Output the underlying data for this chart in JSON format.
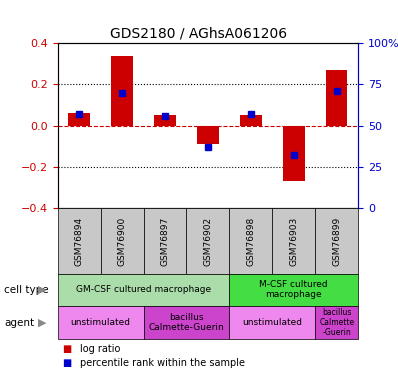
{
  "title": "GDS2180 / AGhsA061206",
  "samples": [
    "GSM76894",
    "GSM76900",
    "GSM76897",
    "GSM76902",
    "GSM76898",
    "GSM76903",
    "GSM76899"
  ],
  "log_ratio": [
    0.06,
    0.34,
    0.05,
    -0.09,
    0.05,
    -0.27,
    0.27
  ],
  "percentile_rank": [
    57,
    70,
    56,
    37,
    57,
    32,
    71
  ],
  "ylim_left": [
    -0.4,
    0.4
  ],
  "ylim_right": [
    0,
    100
  ],
  "yticks_left": [
    -0.4,
    -0.2,
    0.0,
    0.2,
    0.4
  ],
  "yticks_right": [
    0,
    25,
    50,
    75,
    100
  ],
  "ytick_labels_right": [
    "0",
    "25",
    "50",
    "75",
    "100%"
  ],
  "cell_type_groups": [
    {
      "label": "GM-CSF cultured macrophage",
      "color": "#AADDAA",
      "start": 0,
      "end": 4
    },
    {
      "label": "M-CSF cultured\nmacrophage",
      "color": "#44DD44",
      "start": 4,
      "end": 7
    }
  ],
  "agent_groups": [
    {
      "label": "unstimulated",
      "color": "#EE88EE",
      "start": 0,
      "end": 2
    },
    {
      "label": "bacillus\nCalmette-Guerin",
      "color": "#CC44CC",
      "start": 2,
      "end": 4
    },
    {
      "label": "unstimulated",
      "color": "#EE88EE",
      "start": 4,
      "end": 6
    },
    {
      "label": "bacillus\nCalmette\n-Guerin",
      "color": "#CC44CC",
      "start": 6,
      "end": 7
    }
  ],
  "bar_color": "#CC0000",
  "dot_color": "#0000CC",
  "zero_line_color": "#CC0000",
  "sample_label_bg": "#C8C8C8",
  "left_label_color": "#CC0000",
  "right_label_color": "#0000CC"
}
